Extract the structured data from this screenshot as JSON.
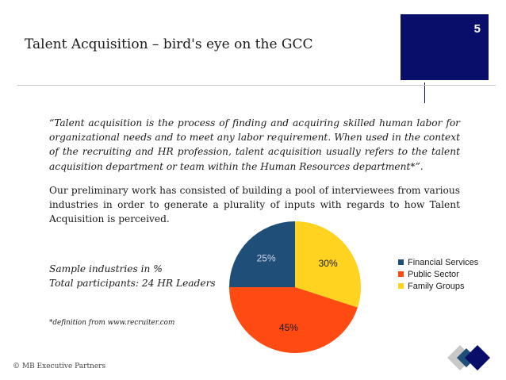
{
  "slide": {
    "title": "Talent Acquisition – bird's eye on the GCC",
    "page_number": "5",
    "quote": "“Talent acquisition is the process of finding and acquiring skilled human labor for organizational needs and to meet any labor requirement. When used in the context of the recruiting and HR profession, talent acquisition usually refers to the talent acquisition department or team within the Human Resources department*”.",
    "paragraph": "Our preliminary work has consisted of building a pool of interviewees from various industries in order to generate a plurality of inputs with regards to how Talent Acquisition is perceived.",
    "sample_line1": "Sample industries in %",
    "sample_line2": "Total participants: 24 HR Leaders",
    "definition": "*definition from www.recruiter.com",
    "copyright": "© MB Executive Partners"
  },
  "colors": {
    "navy": "#0a0e6b",
    "financial": "#1f4e79",
    "public": "#ff4a12",
    "family": "#ffd320"
  },
  "chart_data": {
    "type": "pie",
    "title": "",
    "legend_position": "right",
    "categories": [
      "Financial Services",
      "Public Sector",
      "Family Groups"
    ],
    "values": [
      25,
      45,
      30
    ],
    "labels": [
      "25%",
      "45%",
      "30%"
    ],
    "colors": [
      "#1f4e79",
      "#ff4a12",
      "#ffd320"
    ]
  }
}
